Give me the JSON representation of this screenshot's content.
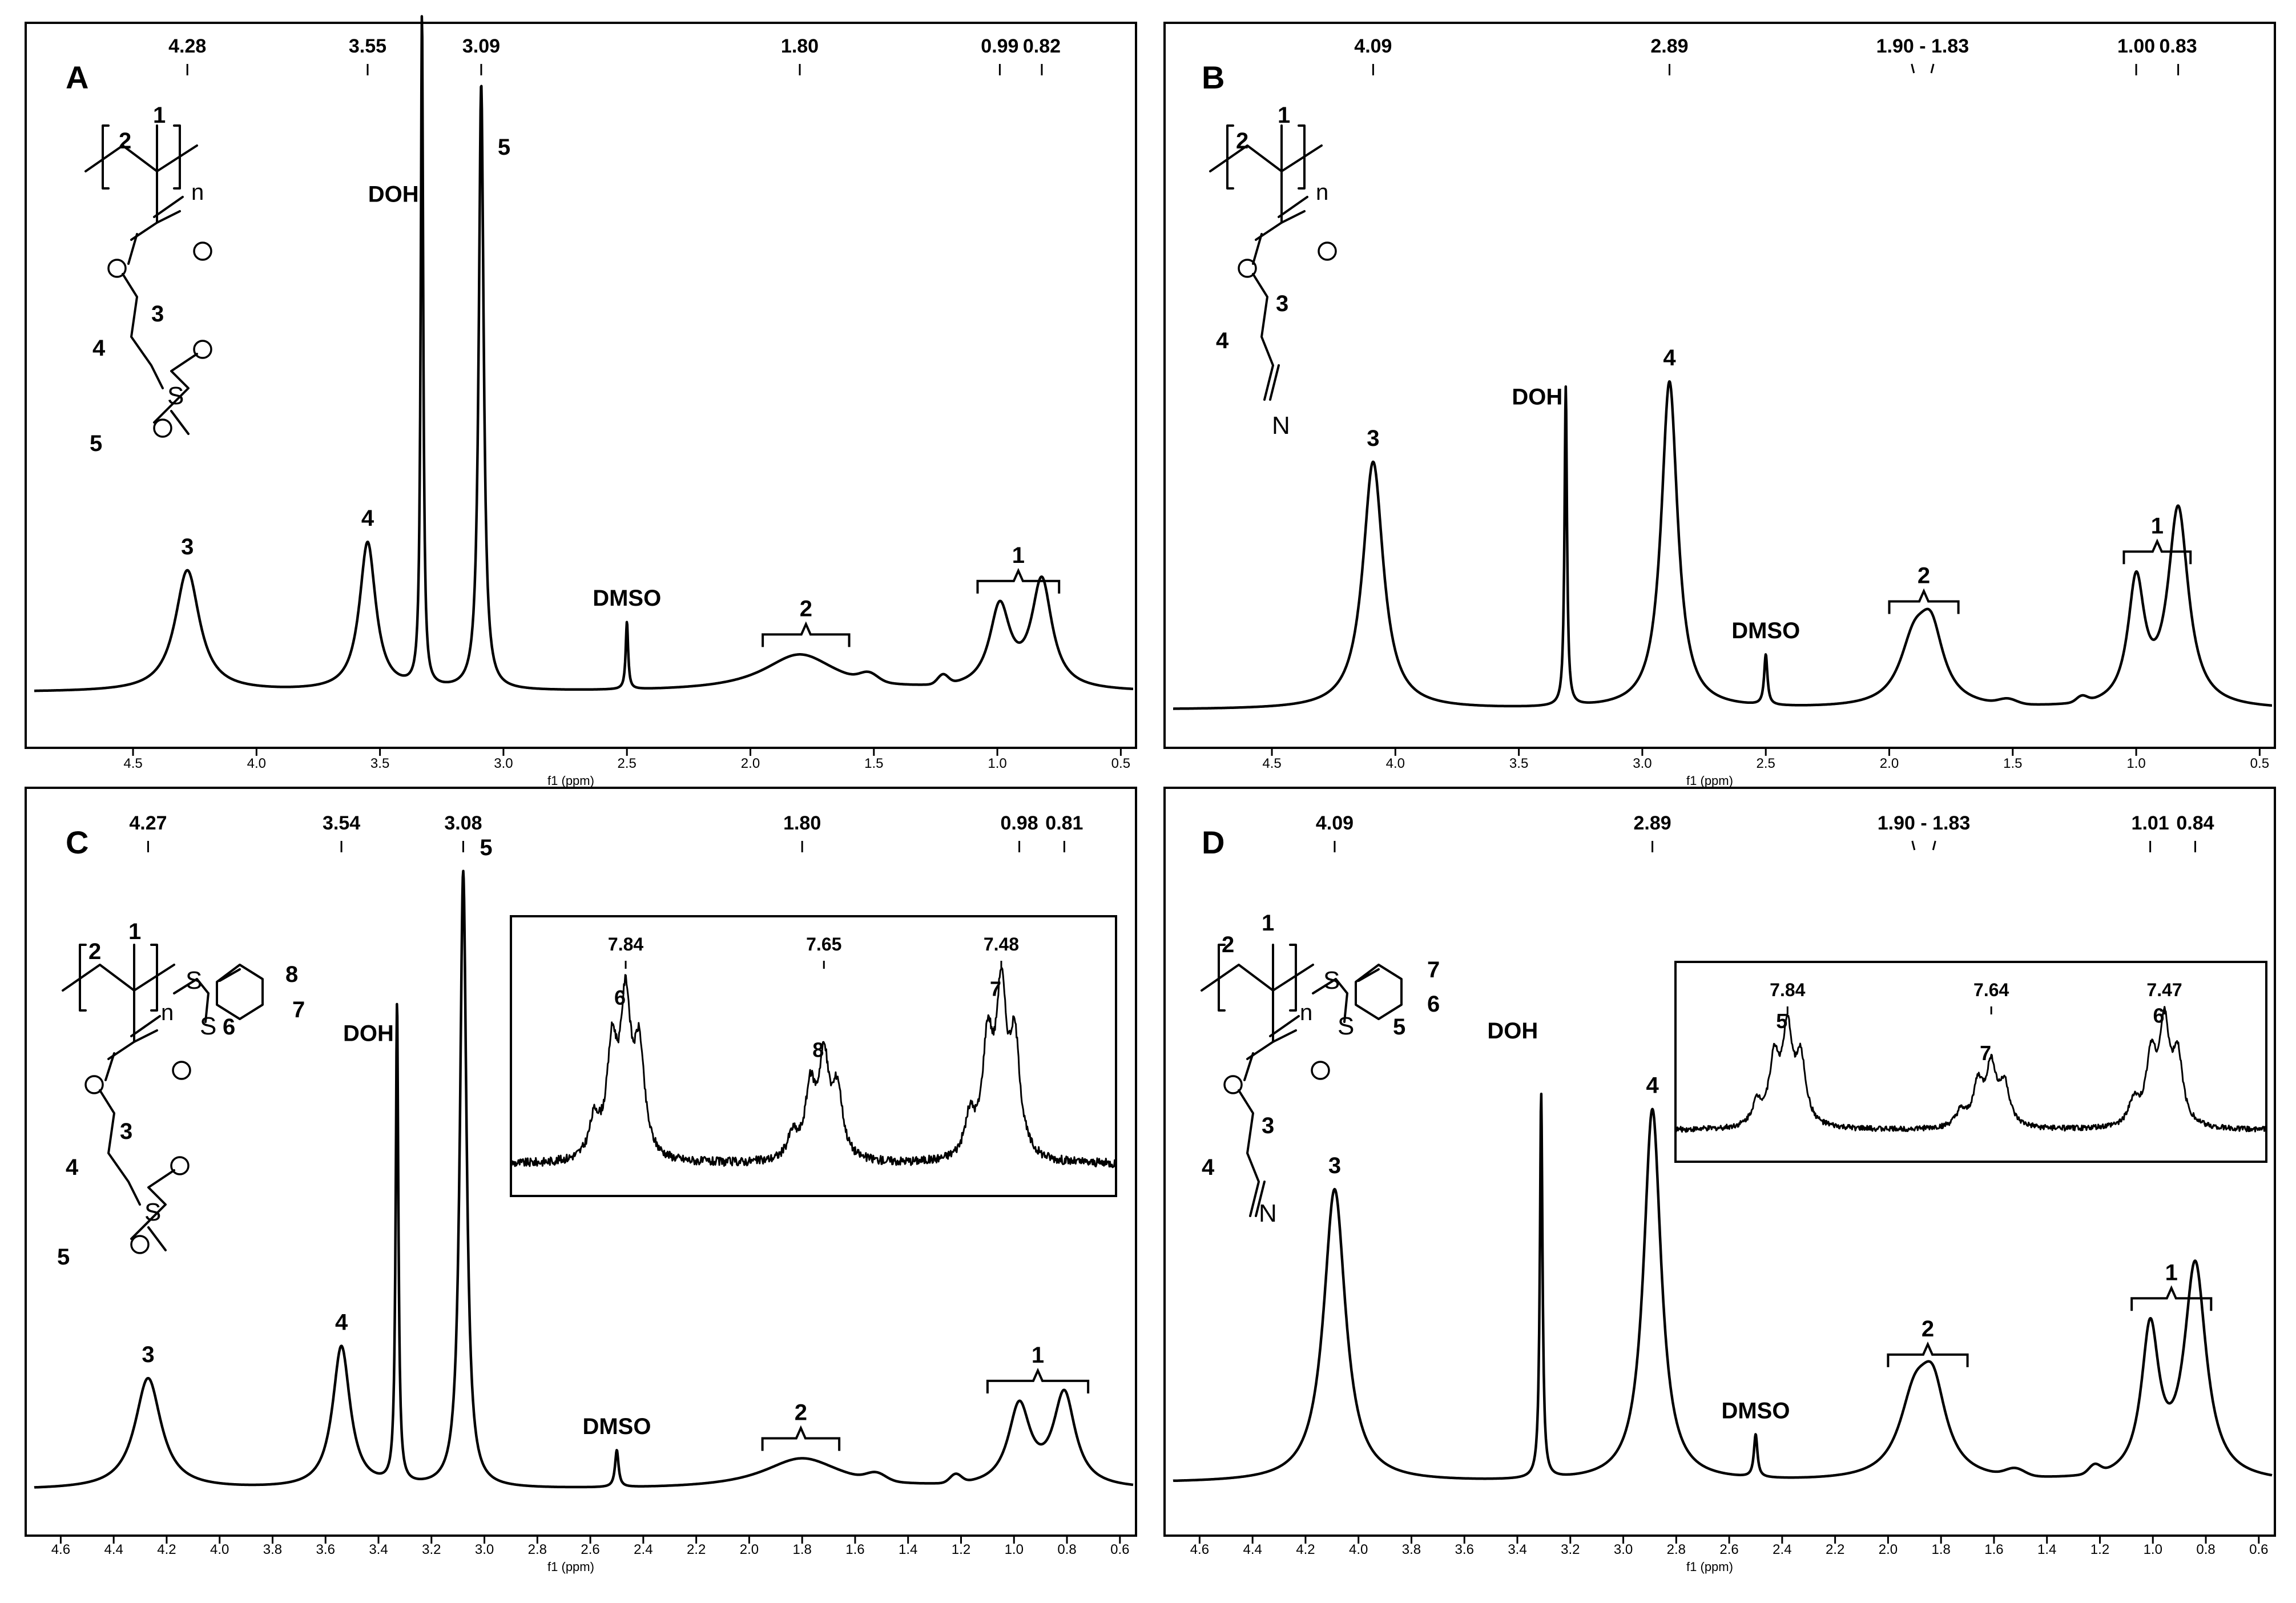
{
  "figure": {
    "description": "1H NMR spectra, four panels A-D",
    "solvent_labels": {
      "water": "DOH",
      "dmso": "DMSO"
    }
  },
  "chart_data": [
    {
      "type": "line",
      "panel": "A",
      "xlabel": "f1 (ppm)",
      "xlim": [
        4.9,
        0.45
      ],
      "x_ticks": [
        "4.5",
        "4.0",
        "3.5",
        "3.0",
        "2.5",
        "2.0",
        "1.5",
        "1.0",
        "0.5"
      ],
      "x_tick_values": [
        4.5,
        4.0,
        3.5,
        3.0,
        2.5,
        2.0,
        1.5,
        1.0,
        0.5
      ],
      "peak_ppm_labels": [
        "4.28",
        "3.55",
        "3.09",
        "1.80",
        "0.99",
        "0.82"
      ],
      "peak_ppm_values": [
        4.28,
        3.55,
        3.09,
        1.8,
        0.99,
        0.82
      ],
      "peaks": [
        {
          "label": "3",
          "ppm": 4.28,
          "height": 0.18,
          "width": 0.06
        },
        {
          "label": "4",
          "ppm": 3.55,
          "height": 0.22,
          "width": 0.04
        },
        {
          "label": "DOH",
          "ppm": 3.33,
          "height": 1.0,
          "width": 0.006
        },
        {
          "label": "5",
          "ppm": 3.09,
          "height": 0.9,
          "width": 0.012
        },
        {
          "label": "DMSO",
          "ppm": 2.5,
          "height": 0.1,
          "width": 0.006
        },
        {
          "label": "2",
          "ppm": 1.8,
          "height": 0.055,
          "width": 0.18,
          "bracket": [
            1.95,
            1.6
          ]
        },
        {
          "label": "1",
          "ppm": 0.99,
          "height": 0.12,
          "width": 0.05,
          "bracket": [
            1.08,
            0.75
          ]
        },
        {
          "label": "",
          "ppm": 0.82,
          "height": 0.16,
          "width": 0.05
        }
      ],
      "structure_labels": [
        "1",
        "2",
        "n",
        "3",
        "4",
        "5"
      ]
    },
    {
      "type": "line",
      "panel": "B",
      "xlabel": "f1 (ppm)",
      "xlim": [
        4.9,
        0.45
      ],
      "x_ticks": [
        "4.5",
        "4.0",
        "3.5",
        "3.0",
        "2.5",
        "2.0",
        "1.5",
        "1.0",
        "0.5"
      ],
      "x_tick_values": [
        4.5,
        4.0,
        3.5,
        3.0,
        2.5,
        2.0,
        1.5,
        1.0,
        0.5
      ],
      "peak_ppm_labels": [
        "4.09",
        "2.89",
        "1.90 - 1.83",
        "1.00",
        "0.83"
      ],
      "peak_ppm_values": [
        4.09,
        2.89,
        1.9,
        1.83,
        1.0,
        0.83
      ],
      "peaks": [
        {
          "label": "3",
          "ppm": 4.09,
          "height": 0.59,
          "width": 0.05
        },
        {
          "label": "DOH",
          "ppm": 3.31,
          "height": 0.76,
          "width": 0.006
        },
        {
          "label": "4",
          "ppm": 2.89,
          "height": 0.78,
          "width": 0.04
        },
        {
          "label": "DMSO",
          "ppm": 2.5,
          "height": 0.12,
          "width": 0.008
        },
        {
          "label": "2",
          "ppm": 1.9,
          "height": 0.14,
          "width": 0.07,
          "bracket": [
            2.0,
            1.72
          ]
        },
        {
          "label": "",
          "ppm": 1.83,
          "height": 0.16,
          "width": 0.06
        },
        {
          "label": "1",
          "ppm": 1.0,
          "height": 0.29,
          "width": 0.04,
          "bracket": [
            1.05,
            0.78
          ]
        },
        {
          "label": "",
          "ppm": 0.83,
          "height": 0.47,
          "width": 0.05
        }
      ],
      "structure_labels": [
        "1",
        "2",
        "n",
        "3",
        "4",
        "N"
      ]
    },
    {
      "type": "line",
      "panel": "C",
      "xlabel": "f1 (ppm)",
      "xlim": [
        4.7,
        0.55
      ],
      "x_ticks": [
        "4.6",
        "4.4",
        "4.2",
        "4.0",
        "3.8",
        "3.6",
        "3.4",
        "3.2",
        "3.0",
        "2.8",
        "2.6",
        "2.4",
        "2.2",
        "2.0",
        "1.8",
        "1.6",
        "1.4",
        "1.2",
        "1.0",
        "0.8",
        "0.6"
      ],
      "x_tick_values": [
        4.6,
        4.4,
        4.2,
        4.0,
        3.8,
        3.6,
        3.4,
        3.2,
        3.0,
        2.8,
        2.6,
        2.4,
        2.2,
        2.0,
        1.8,
        1.6,
        1.4,
        1.2,
        1.0,
        0.8,
        0.6
      ],
      "peak_ppm_labels": [
        "4.27",
        "3.54",
        "3.08",
        "1.80",
        "0.98",
        "0.81"
      ],
      "peak_ppm_values": [
        4.27,
        3.54,
        3.08,
        1.8,
        0.98,
        0.81
      ],
      "peaks": [
        {
          "label": "3",
          "ppm": 4.27,
          "height": 0.18,
          "width": 0.06
        },
        {
          "label": "4",
          "ppm": 3.54,
          "height": 0.23,
          "width": 0.04
        },
        {
          "label": "DOH",
          "ppm": 3.33,
          "height": 0.78,
          "width": 0.006
        },
        {
          "label": "5",
          "ppm": 3.08,
          "height": 1.0,
          "width": 0.015
        },
        {
          "label": "DMSO",
          "ppm": 2.5,
          "height": 0.06,
          "width": 0.008
        },
        {
          "label": "2",
          "ppm": 1.8,
          "height": 0.05,
          "width": 0.18,
          "bracket": [
            1.95,
            1.66
          ]
        },
        {
          "label": "1",
          "ppm": 0.98,
          "height": 0.13,
          "width": 0.05,
          "bracket": [
            1.1,
            0.72
          ]
        },
        {
          "label": "",
          "ppm": 0.81,
          "height": 0.15,
          "width": 0.05
        }
      ],
      "inset": {
        "ppm_labels": [
          "7.84",
          "7.65",
          "7.48"
        ],
        "ppm_values": [
          7.84,
          7.65,
          7.48
        ],
        "peak_labels": [
          "6",
          "8",
          "7"
        ]
      },
      "structure_labels": [
        "1",
        "2",
        "n",
        "3",
        "4",
        "5",
        "6",
        "7",
        "8",
        "S",
        "S"
      ]
    },
    {
      "type": "line",
      "panel": "D",
      "xlabel": "f1 (ppm)",
      "xlim": [
        4.7,
        0.55
      ],
      "x_ticks": [
        "4.6",
        "4.4",
        "4.2",
        "4.0",
        "3.8",
        "3.6",
        "3.4",
        "3.2",
        "3.0",
        "2.8",
        "2.6",
        "2.4",
        "2.2",
        "2.0",
        "1.8",
        "1.6",
        "1.4",
        "1.2",
        "1.0",
        "0.8",
        "0.6"
      ],
      "x_tick_values": [
        4.6,
        4.4,
        4.2,
        4.0,
        3.8,
        3.6,
        3.4,
        3.2,
        3.0,
        2.8,
        2.6,
        2.4,
        2.2,
        2.0,
        1.8,
        1.6,
        1.4,
        1.2,
        1.0,
        0.8,
        0.6
      ],
      "peak_ppm_labels": [
        "4.09",
        "2.89",
        "1.90 - 1.83",
        "1.01",
        "0.84"
      ],
      "peak_ppm_values": [
        4.09,
        2.89,
        1.9,
        1.83,
        1.01,
        0.84
      ],
      "peaks": [
        {
          "label": "3",
          "ppm": 4.09,
          "height": 0.48,
          "width": 0.05
        },
        {
          "label": "DOH",
          "ppm": 3.31,
          "height": 0.63,
          "width": 0.006
        },
        {
          "label": "4",
          "ppm": 2.89,
          "height": 0.61,
          "width": 0.04
        },
        {
          "label": "DMSO",
          "ppm": 2.5,
          "height": 0.07,
          "width": 0.008
        },
        {
          "label": "2",
          "ppm": 1.9,
          "height": 0.12,
          "width": 0.07,
          "bracket": [
            2.0,
            1.7
          ]
        },
        {
          "label": "",
          "ppm": 1.83,
          "height": 0.13,
          "width": 0.06
        },
        {
          "label": "1",
          "ppm": 1.01,
          "height": 0.24,
          "width": 0.04,
          "bracket": [
            1.08,
            0.78
          ]
        },
        {
          "label": "",
          "ppm": 0.84,
          "height": 0.35,
          "width": 0.05
        }
      ],
      "inset": {
        "ppm_labels": [
          "7.84",
          "7.64",
          "7.47"
        ],
        "ppm_values": [
          7.84,
          7.64,
          7.47
        ],
        "peak_labels": [
          "5",
          "7",
          "6"
        ]
      },
      "structure_labels": [
        "1",
        "2",
        "n",
        "3",
        "4",
        "5",
        "6",
        "7",
        "N",
        "S",
        "S"
      ]
    }
  ]
}
